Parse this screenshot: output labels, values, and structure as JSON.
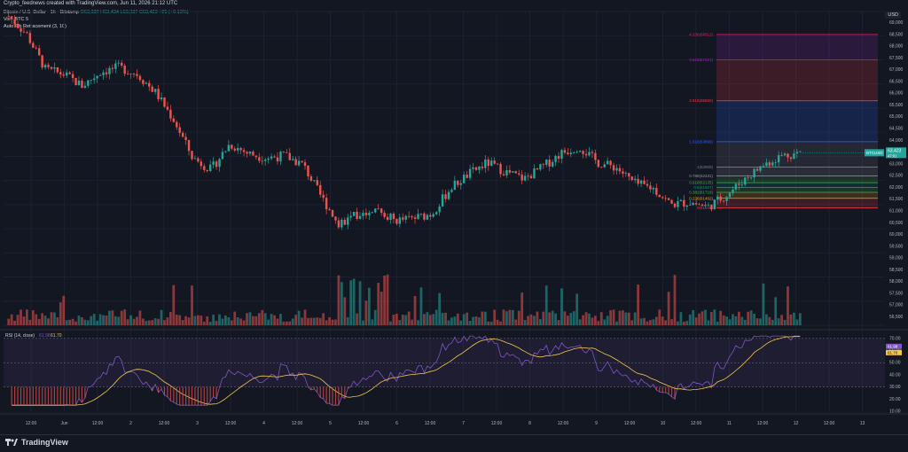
{
  "header": {
    "title": "Crypto_feednews created with TradingView.com, Jun 11, 2026 21:12 UTC"
  },
  "legend": {
    "symbol_line": "Bitcoin / U.S. Dollar · 1h · Bitstamp",
    "ohlc": "O63,339 H63,434 L63,337 C63,423 +85 (+0.13%)",
    "vol_line": "Vol · BTC  5",
    "fib_line": "Auto Fib Retracement (3, 10)"
  },
  "currency_badge": "USD",
  "price_axis": {
    "labels": [
      "69,000",
      "68,500",
      "68,000",
      "67,500",
      "67,000",
      "66,500",
      "66,000",
      "65,500",
      "65,000",
      "64,500",
      "64,000",
      "63,500",
      "63,000",
      "62,500",
      "62,000",
      "61,500",
      "61,000",
      "60,500",
      "60,000",
      "59,500",
      "59,000",
      "58,500",
      "58,000",
      "57,500",
      "57,000",
      "56,500"
    ],
    "last_price_label": "63,423",
    "last_price_sub": "47:01",
    "symbol_tag": "BTCUSD"
  },
  "rsi": {
    "legend": "RSI (14, close)",
    "value_a": "61.98",
    "value_b": "61.70",
    "labels": [
      "70.00",
      "60.00",
      "50.00",
      "40.00",
      "30.00",
      "20.00",
      "10.00"
    ],
    "value_a_label": "61.98",
    "value_b_label": "61.70"
  },
  "time_axis": {
    "labels": [
      "12:00",
      "Jun",
      "12:00",
      "2",
      "12:00",
      "3",
      "12:00",
      "4",
      "12:00",
      "5",
      "12:00",
      "6",
      "12:00",
      "7",
      "12:00",
      "8",
      "12:00",
      "9",
      "12:00",
      "10",
      "12:00",
      "11",
      "12:00",
      "12",
      "12:00",
      "13"
    ]
  },
  "fib_levels": [
    {
      "label": "4.236(68512)",
      "color": "#e91e63"
    },
    {
      "label": "3.618(67421)",
      "color": "#9c27b0"
    },
    {
      "label": "2.618(65660)",
      "color": "#f23645"
    },
    {
      "label": "1.618(63899)",
      "color": "#2962ff"
    },
    {
      "label": "1(62809)",
      "color": "#787b86"
    },
    {
      "label": "0.786(62431)",
      "color": "#9598a1"
    },
    {
      "label": "0.618(62135)",
      "color": "#4caf50"
    },
    {
      "label": "0.5(61927)",
      "color": "#089981"
    },
    {
      "label": "0.382(61719)",
      "color": "#4caf50"
    },
    {
      "label": "0.236(61462)",
      "color": "#f7a600"
    },
    {
      "label": "0(61046)",
      "color": "#f23645"
    }
  ],
  "footer": {
    "brand": "TradingView"
  },
  "colors": {
    "up": "#26a69a",
    "down": "#ef5350",
    "bg": "#131722",
    "rsi_line": "#7e57c2",
    "rsi_ma": "#f7c64b"
  },
  "chart_data": {
    "type": "candlestick",
    "ylim": [
      56000,
      69500
    ],
    "close_path": [
      69300,
      68500,
      67000,
      66800,
      66300,
      66900,
      67100,
      66800,
      66000,
      64800,
      63200,
      62700,
      63800,
      63400,
      63200,
      63300,
      62900,
      61500,
      60300,
      60800,
      61000,
      60500,
      60600,
      60800,
      61900,
      62500,
      63000,
      62600,
      62300,
      62800,
      63400,
      63700,
      63000,
      62800,
      62100,
      61900,
      61200,
      61300,
      61100,
      61600,
      62300,
      62900,
      63300,
      63423
    ]
  }
}
